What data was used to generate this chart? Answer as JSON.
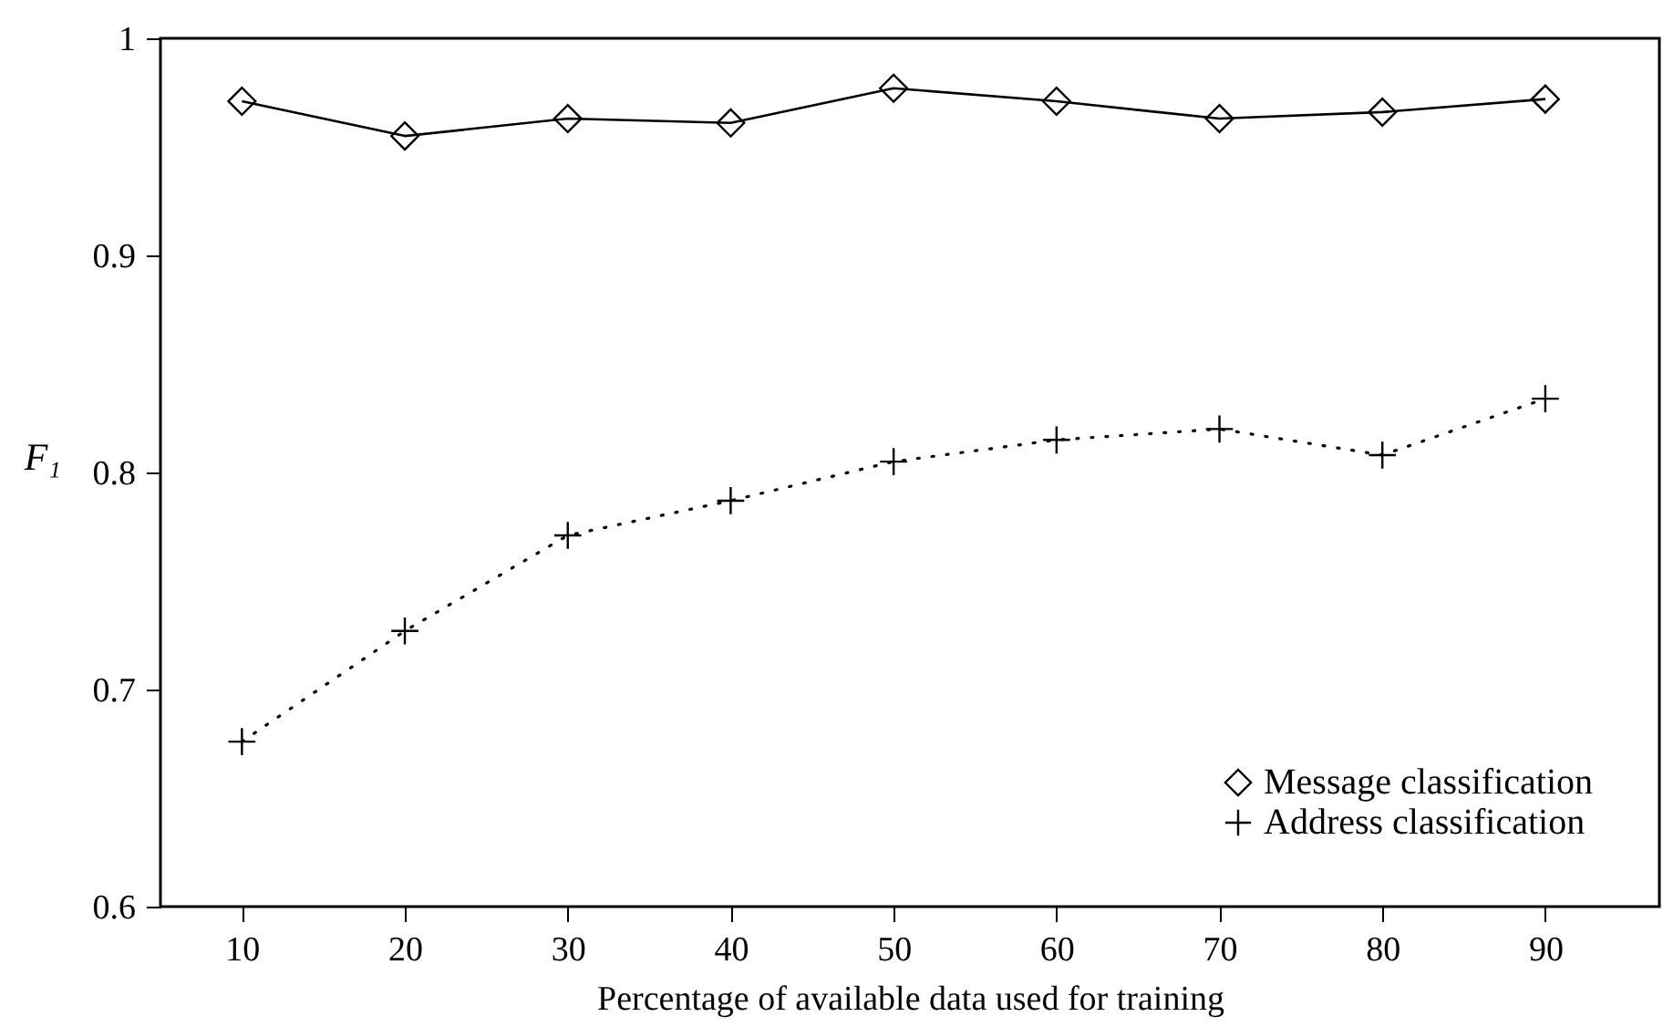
{
  "chart_data": {
    "type": "line",
    "xlabel": "Percentage of available data used for training",
    "ylabel": "F₁",
    "x": [
      10,
      20,
      30,
      40,
      50,
      60,
      70,
      80,
      90
    ],
    "series": [
      {
        "name": "Message classification",
        "color": "#000000",
        "marker": "diamond",
        "line_style": "solid",
        "values": [
          0.971,
          0.955,
          0.963,
          0.961,
          0.977,
          0.971,
          0.963,
          0.966,
          0.972
        ]
      },
      {
        "name": "Address classification",
        "color": "#000000",
        "marker": "cross",
        "line_style": "dotted",
        "values": [
          0.676,
          0.727,
          0.771,
          0.787,
          0.805,
          0.815,
          0.82,
          0.808,
          0.834
        ]
      }
    ],
    "xlim": [
      5,
      97
    ],
    "xticks": [
      10,
      20,
      30,
      40,
      50,
      60,
      70,
      80,
      90
    ],
    "ylim": [
      0.6,
      1
    ],
    "yticks": [
      {
        "value": 0.6,
        "label": "0.6"
      },
      {
        "value": 0.7,
        "label": "0.7"
      },
      {
        "value": 0.8,
        "label": "0.8"
      },
      {
        "value": 0.9,
        "label": "0.9"
      },
      {
        "value": 1,
        "label": "1"
      }
    ],
    "grid": false,
    "legend": "bottom right"
  }
}
